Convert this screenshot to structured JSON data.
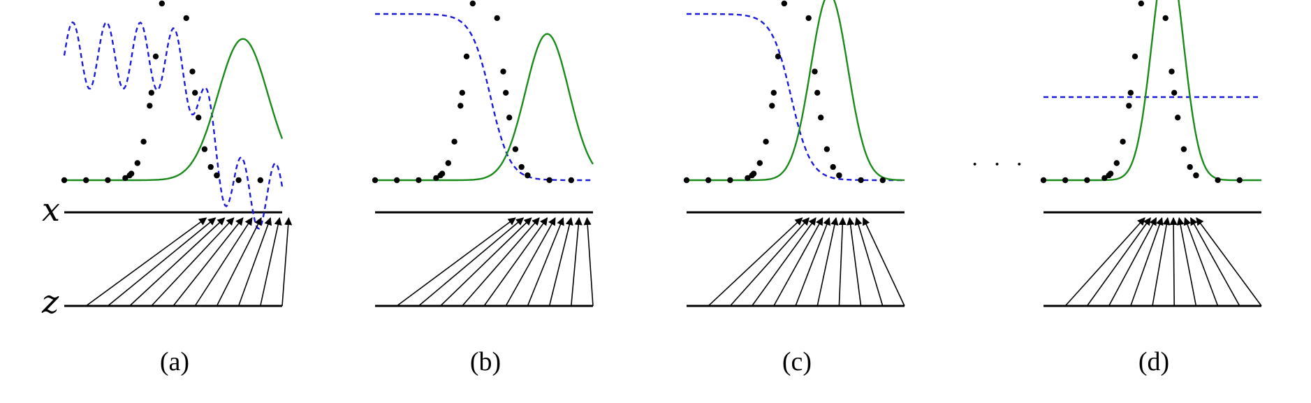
{
  "axis_labels": {
    "x": "x",
    "z": "z"
  },
  "ellipsis": "· · ·",
  "colors": {
    "data_points": "#000000",
    "model_density": "#1a8a1a",
    "discriminator": "#1a1adf",
    "mapping_arrows": "#000000"
  },
  "panels": [
    {
      "caption": "(a)",
      "model_mean": 0.82,
      "model_width": 0.115,
      "model_peak": 0.85,
      "discriminator": "oscillating"
    },
    {
      "caption": "(b)",
      "model_mean": 0.79,
      "model_width": 0.1,
      "model_peak": 0.88,
      "discriminator": "sigmoid"
    },
    {
      "caption": "(c)",
      "model_mean": 0.655,
      "model_width": 0.085,
      "model_peak": 1.12,
      "discriminator": "sigmoid"
    },
    {
      "caption": "(d)",
      "model_mean": 0.57,
      "model_width": 0.072,
      "model_peak": 1.38,
      "discriminator": "flat"
    }
  ]
}
